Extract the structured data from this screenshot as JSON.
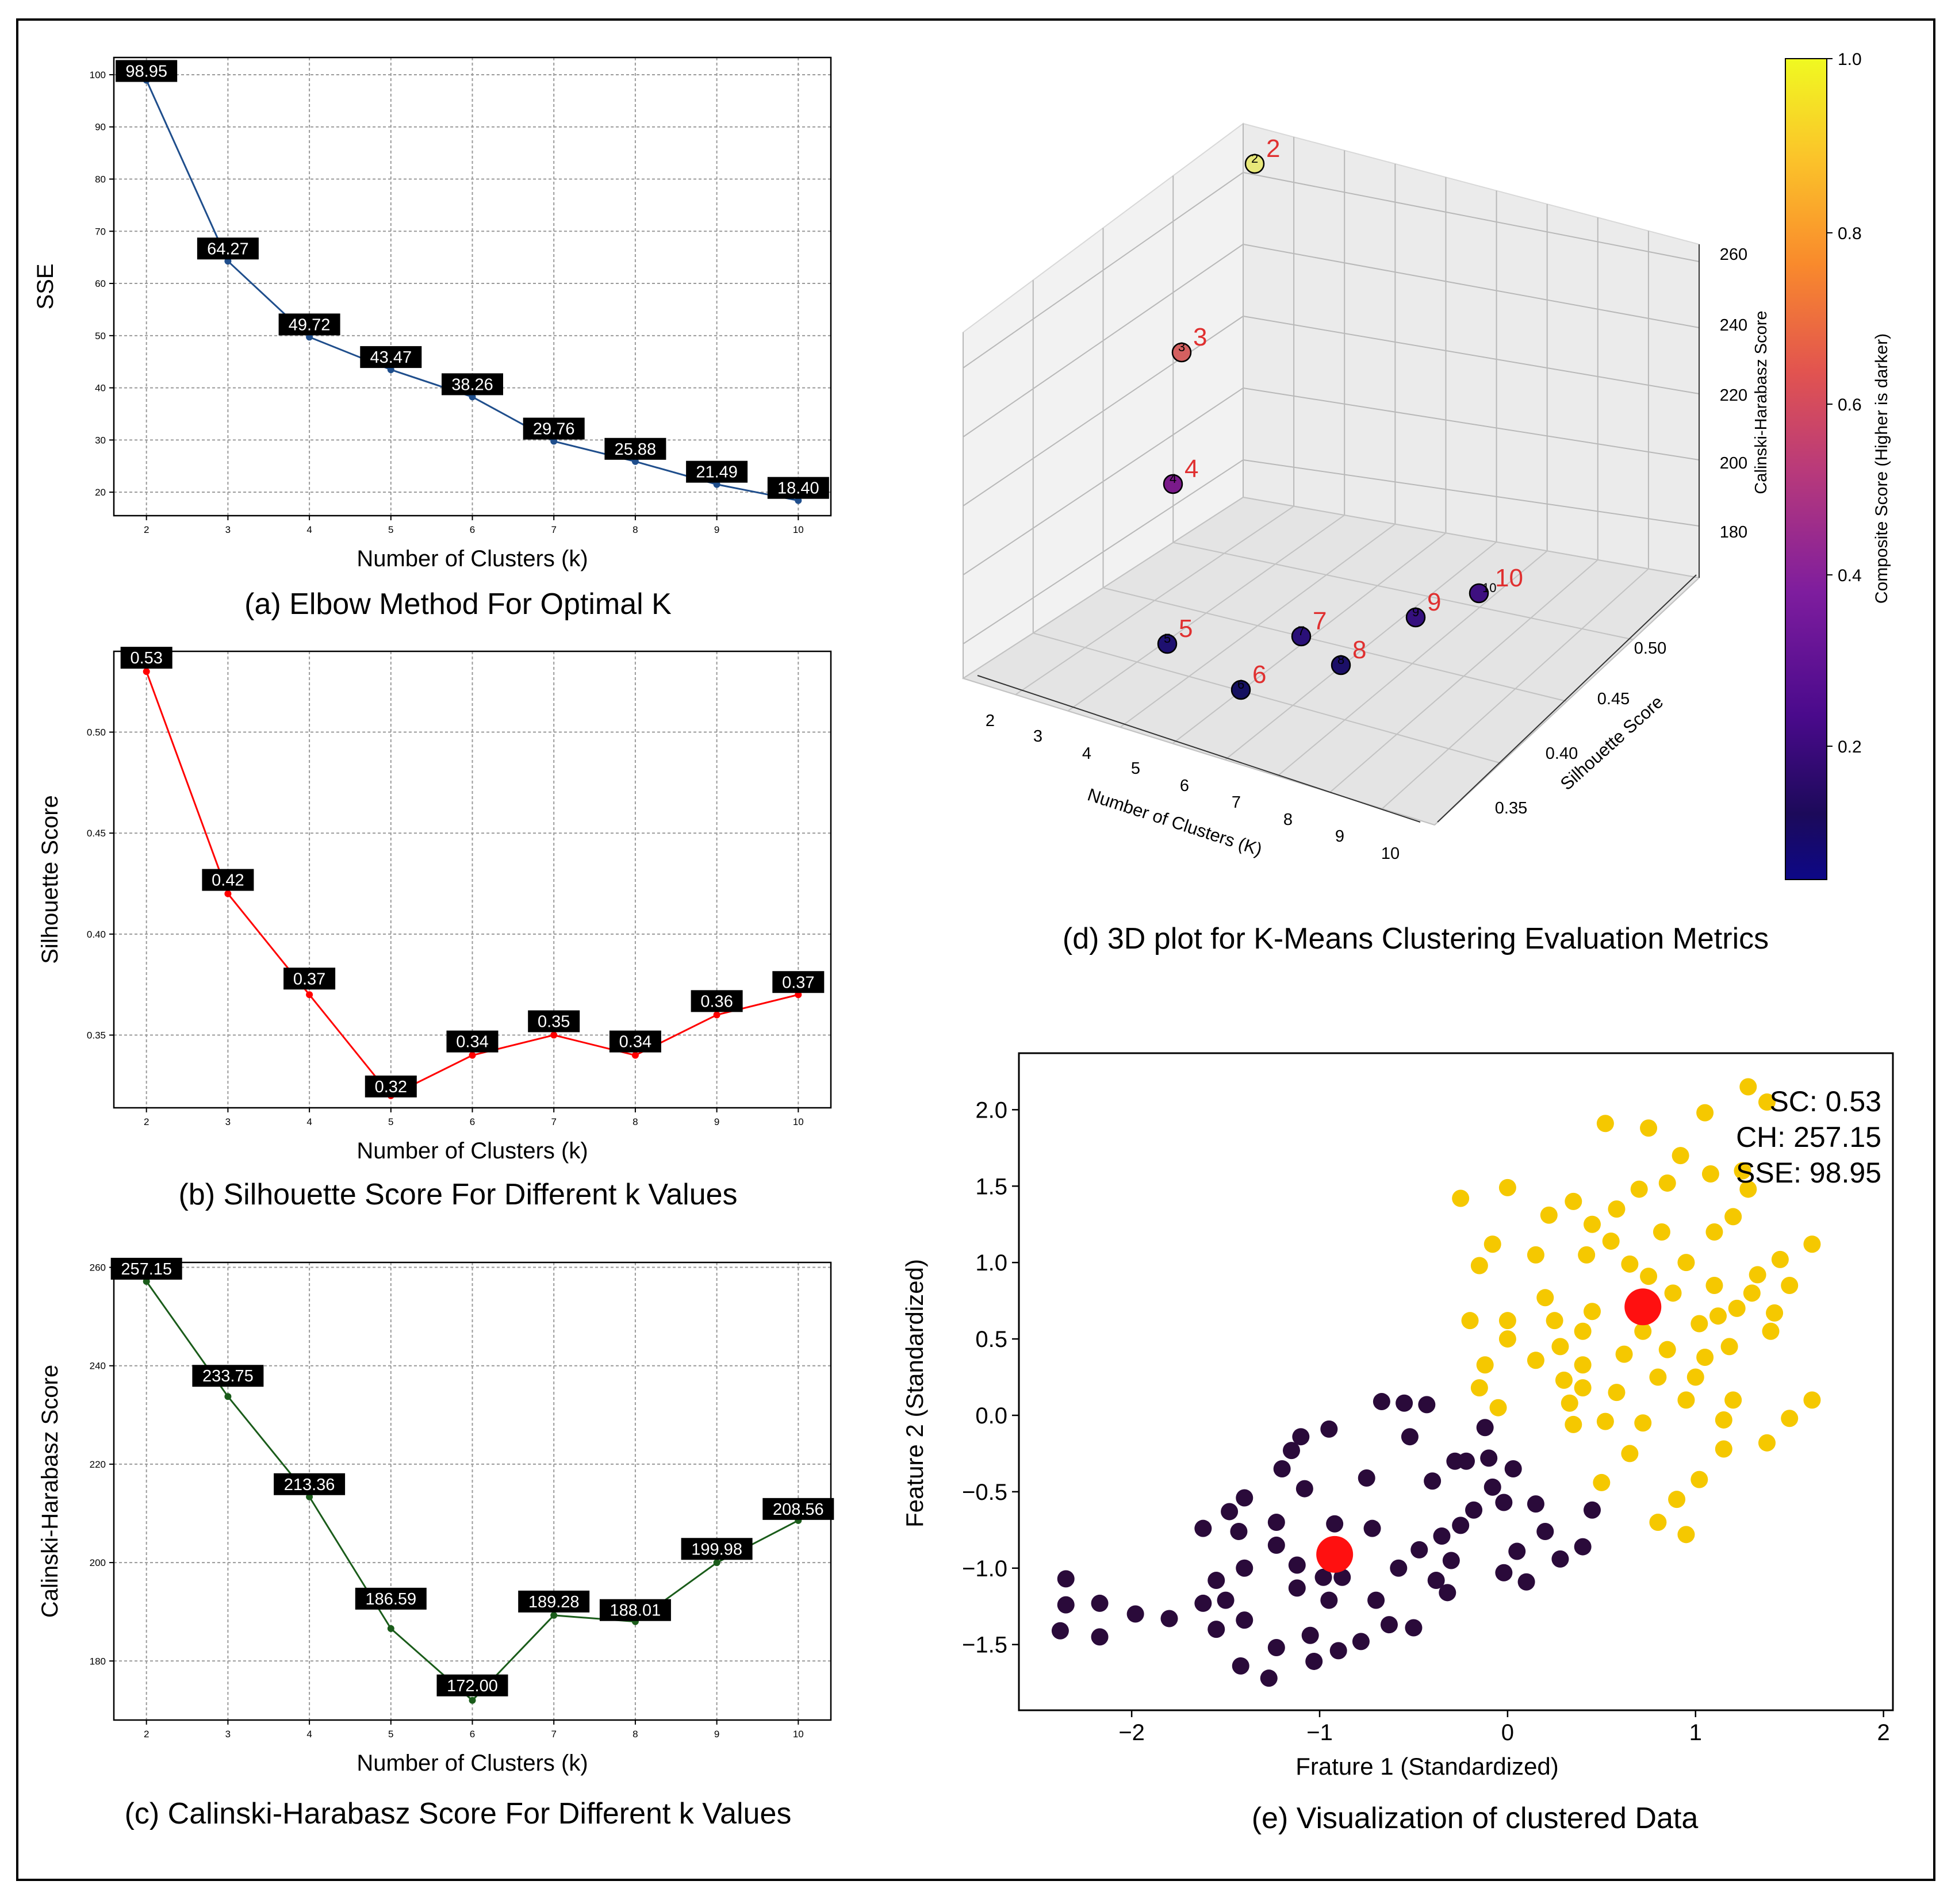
{
  "chart_data": [
    {
      "id": "elbow",
      "type": "line",
      "caption": "(a) Elbow Method For Optimal K",
      "xlabel": "Number of Clusters (k)",
      "ylabel": "SSE",
      "x": [
        2,
        3,
        4,
        5,
        6,
        7,
        8,
        9,
        10
      ],
      "values": [
        98.95,
        64.27,
        49.72,
        43.47,
        38.26,
        29.76,
        25.88,
        21.49,
        18.4
      ],
      "data_labels": [
        "98.95",
        "64.27",
        "49.72",
        "43.47",
        "38.26",
        "29.76",
        "25.88",
        "21.49",
        "18.40"
      ],
      "xlim": [
        1.6,
        10.4
      ],
      "ylim": [
        15.5,
        103.3
      ],
      "yticks": [
        20,
        30,
        40,
        50,
        60,
        70,
        80,
        90,
        100
      ],
      "xticks": [
        2,
        3,
        4,
        5,
        6,
        7,
        8,
        9,
        10
      ],
      "color": "#1f4e8c",
      "grid": true
    },
    {
      "id": "silhouette",
      "type": "line",
      "caption": "(b) Silhouette Score For Different k Values",
      "xlabel": "Number of Clusters (k)",
      "ylabel": "Silhouette Score",
      "x": [
        2,
        3,
        4,
        5,
        6,
        7,
        8,
        9,
        10
      ],
      "values": [
        0.53,
        0.42,
        0.37,
        0.32,
        0.34,
        0.35,
        0.34,
        0.36,
        0.37
      ],
      "data_labels": [
        "0.53",
        "0.42",
        "0.37",
        "0.32",
        "0.34",
        "0.35",
        "0.34",
        "0.36",
        "0.37"
      ],
      "xlim": [
        1.6,
        10.4
      ],
      "ylim": [
        0.314,
        0.54
      ],
      "yticks": [
        0.35,
        0.4,
        0.45,
        0.5
      ],
      "ytick_labels": [
        "0.35",
        "0.40",
        "0.45",
        "0.50"
      ],
      "xticks": [
        2,
        3,
        4,
        5,
        6,
        7,
        8,
        9,
        10
      ],
      "color": "#ff0000",
      "grid": true
    },
    {
      "id": "calinski",
      "type": "line",
      "caption": "(c) Calinski-Harabasz Score For Different k Values",
      "xlabel": "Number of Clusters (k)",
      "ylabel": "Calinski-Harabasz Score",
      "x": [
        2,
        3,
        4,
        5,
        6,
        7,
        8,
        9,
        10
      ],
      "values": [
        257.15,
        233.75,
        213.36,
        186.59,
        172.0,
        189.28,
        188.01,
        199.98,
        208.56
      ],
      "data_labels": [
        "257.15",
        "233.75",
        "213.36",
        "186.59",
        "172.00",
        "189.28",
        "188.01",
        "199.98",
        "208.56"
      ],
      "xlim": [
        1.6,
        10.4
      ],
      "ylim": [
        168,
        261
      ],
      "yticks": [
        180,
        200,
        220,
        240,
        260
      ],
      "xticks": [
        2,
        3,
        4,
        5,
        6,
        7,
        8,
        9,
        10
      ],
      "color": "#1a5c1a",
      "grid": true
    },
    {
      "id": "plot3d",
      "type": "scatter",
      "caption": "(d) 3D plot for K-Means Clustering Evaluation Metrics",
      "xlabel": "Number of Clusters (K)",
      "ylabel": "Silhouette Score",
      "zlabel": "Calinski-Harabasz Score",
      "k": [
        2,
        3,
        4,
        5,
        6,
        7,
        8,
        9,
        10
      ],
      "silhouette": [
        0.53,
        0.42,
        0.37,
        0.32,
        0.34,
        0.35,
        0.34,
        0.36,
        0.37
      ],
      "calinski": [
        257.15,
        233.75,
        213.36,
        186.59,
        172.0,
        189.28,
        188.01,
        199.98,
        208.56
      ],
      "composite": [
        1.0,
        0.62,
        0.33,
        0.1,
        0.05,
        0.15,
        0.1,
        0.25,
        0.3
      ],
      "point_labels": [
        "2",
        "3",
        "4",
        "5",
        "6",
        "7",
        "8",
        "9",
        "10"
      ],
      "x_tick_labels": [
        "2",
        "3",
        "4",
        "5",
        "6",
        "7",
        "8",
        "9",
        "10"
      ],
      "y_tick_labels": [
        "0.35",
        "0.40",
        "0.45",
        "0.50"
      ],
      "z_tick_labels": [
        "180",
        "200",
        "220",
        "240",
        "260"
      ],
      "colorbar": {
        "label": "Composite Score (Higher is darker)",
        "ticks": [
          "0.2",
          "0.4",
          "0.6",
          "0.8",
          "1.0"
        ],
        "colormap": "plasma"
      }
    },
    {
      "id": "clusters",
      "type": "scatter",
      "caption": "(e) Visualization of clustered Data",
      "xlabel": "Frature 1 (Standardized)",
      "ylabel": "Feature 2 (Standardized)",
      "xlim": [
        -2.6,
        2.05
      ],
      "ylim": [
        -1.93,
        2.37
      ],
      "xticks": [
        -2,
        -1,
        0,
        1,
        2
      ],
      "xtick_labels": [
        "−2",
        "−1",
        "0",
        "1",
        "2"
      ],
      "yticks": [
        -1.5,
        -1.0,
        -0.5,
        0.0,
        0.5,
        1.0,
        1.5,
        2.0
      ],
      "ytick_labels": [
        "−1.5",
        "−1.0",
        "−0.5",
        "0.0",
        "0.5",
        "1.0",
        "1.5",
        "2.0"
      ],
      "annotations": [
        "SC: 0.53",
        "CH: 257.15",
        "SSE: 98.95"
      ],
      "cluster_colors": [
        "#2a0a3a",
        "#f5c800"
      ],
      "centroid_color": "#ff1010",
      "centroids": [
        [
          0.72,
          0.71
        ],
        [
          -0.92,
          -0.91
        ]
      ],
      "cluster0": [
        [
          -2.35,
          -1.07
        ],
        [
          -2.35,
          -1.24
        ],
        [
          -2.38,
          -1.41
        ],
        [
          -2.17,
          -1.23
        ],
        [
          -2.17,
          -1.45
        ],
        [
          -1.98,
          -1.3
        ],
        [
          -1.8,
          -1.33
        ],
        [
          -1.62,
          -0.74
        ],
        [
          -1.62,
          -1.23
        ],
        [
          -1.55,
          -1.08
        ],
        [
          -1.55,
          -1.4
        ],
        [
          -1.5,
          -1.21
        ],
        [
          -1.48,
          -0.63
        ],
        [
          -1.43,
          -0.76
        ],
        [
          -1.4,
          -0.54
        ],
        [
          -1.4,
          -1.0
        ],
        [
          -1.4,
          -1.34
        ],
        [
          -1.42,
          -1.64
        ],
        [
          -1.27,
          -1.72
        ],
        [
          -1.23,
          -0.7
        ],
        [
          -1.23,
          -0.85
        ],
        [
          -1.23,
          -1.52
        ],
        [
          -1.2,
          -0.35
        ],
        [
          -1.15,
          -0.23
        ],
        [
          -1.12,
          -0.98
        ],
        [
          -1.12,
          -1.13
        ],
        [
          -1.1,
          -0.14
        ],
        [
          -1.08,
          -0.48
        ],
        [
          -1.05,
          -1.44
        ],
        [
          -1.03,
          -1.61
        ],
        [
          -0.98,
          -1.06
        ],
        [
          -0.95,
          -0.09
        ],
        [
          -0.95,
          -1.21
        ],
        [
          -0.92,
          -0.71
        ],
        [
          -0.9,
          -1.54
        ],
        [
          -0.88,
          -1.06
        ],
        [
          -0.78,
          -1.48
        ],
        [
          -0.75,
          -0.41
        ],
        [
          -0.72,
          -0.74
        ],
        [
          -0.7,
          -1.21
        ],
        [
          -0.67,
          0.09
        ],
        [
          -0.63,
          -1.37
        ],
        [
          -0.58,
          -1.0
        ],
        [
          -0.55,
          0.08
        ],
        [
          -0.52,
          -0.14
        ],
        [
          -0.5,
          -1.39
        ],
        [
          -0.47,
          -0.88
        ],
        [
          -0.43,
          0.07
        ],
        [
          -0.4,
          -0.43
        ],
        [
          -0.38,
          -1.08
        ],
        [
          -0.35,
          -0.79
        ],
        [
          -0.32,
          -1.16
        ],
        [
          -0.28,
          -0.3
        ],
        [
          -0.25,
          -0.72
        ],
        [
          -0.22,
          -0.3
        ],
        [
          -0.18,
          -0.62
        ],
        [
          -0.12,
          -0.08
        ],
        [
          -0.08,
          -0.47
        ],
        [
          -0.02,
          -0.57
        ],
        [
          -0.02,
          -1.03
        ],
        [
          0.03,
          -0.35
        ],
        [
          0.05,
          -0.89
        ],
        [
          0.1,
          -1.09
        ],
        [
          0.15,
          -0.58
        ],
        [
          0.2,
          -0.76
        ],
        [
          0.28,
          -0.94
        ],
        [
          0.4,
          -0.86
        ],
        [
          0.45,
          -0.62
        ],
        [
          -0.1,
          -0.28
        ],
        [
          -0.3,
          -0.95
        ]
      ],
      "cluster1": [
        [
          -0.25,
          1.42
        ],
        [
          -0.2,
          0.62
        ],
        [
          -0.15,
          0.98
        ],
        [
          -0.15,
          0.18
        ],
        [
          -0.12,
          0.33
        ],
        [
          -0.08,
          1.12
        ],
        [
          -0.05,
          0.05
        ],
        [
          0.0,
          0.62
        ],
        [
          0.0,
          0.5
        ],
        [
          0.0,
          1.49
        ],
        [
          0.15,
          0.36
        ],
        [
          0.15,
          1.05
        ],
        [
          0.2,
          0.77
        ],
        [
          0.22,
          1.31
        ],
        [
          0.25,
          0.62
        ],
        [
          0.28,
          0.45
        ],
        [
          0.3,
          0.23
        ],
        [
          0.33,
          0.08
        ],
        [
          0.35,
          -0.06
        ],
        [
          0.35,
          1.4
        ],
        [
          0.4,
          0.55
        ],
        [
          0.4,
          0.33
        ],
        [
          0.4,
          0.18
        ],
        [
          0.42,
          1.05
        ],
        [
          0.45,
          0.68
        ],
        [
          0.45,
          1.25
        ],
        [
          0.5,
          -0.44
        ],
        [
          0.52,
          1.91
        ],
        [
          0.52,
          -0.04
        ],
        [
          0.55,
          1.14
        ],
        [
          0.58,
          1.35
        ],
        [
          0.58,
          0.15
        ],
        [
          0.62,
          0.4
        ],
        [
          0.65,
          -0.25
        ],
        [
          0.65,
          0.99
        ],
        [
          0.7,
          1.48
        ],
        [
          0.72,
          -0.05
        ],
        [
          0.72,
          0.55
        ],
        [
          0.75,
          0.91
        ],
        [
          0.75,
          1.88
        ],
        [
          0.8,
          0.25
        ],
        [
          0.8,
          -0.7
        ],
        [
          0.82,
          1.2
        ],
        [
          0.85,
          0.43
        ],
        [
          0.85,
          1.52
        ],
        [
          0.88,
          0.8
        ],
        [
          0.9,
          -0.55
        ],
        [
          0.92,
          1.7
        ],
        [
          0.95,
          1.0
        ],
        [
          0.95,
          0.1
        ],
        [
          1.0,
          0.25
        ],
        [
          1.02,
          -0.42
        ],
        [
          1.02,
          0.6
        ],
        [
          1.05,
          1.98
        ],
        [
          1.05,
          0.38
        ],
        [
          1.08,
          1.58
        ],
        [
          1.1,
          0.85
        ],
        [
          1.1,
          1.2
        ],
        [
          1.12,
          0.65
        ],
        [
          1.15,
          -0.03
        ],
        [
          1.18,
          0.45
        ],
        [
          1.2,
          0.1
        ],
        [
          1.22,
          0.7
        ],
        [
          1.25,
          1.6
        ],
        [
          1.28,
          1.48
        ],
        [
          1.3,
          0.8
        ],
        [
          1.33,
          0.92
        ],
        [
          1.38,
          -0.18
        ],
        [
          1.4,
          0.55
        ],
        [
          1.42,
          0.67
        ],
        [
          1.45,
          1.02
        ],
        [
          1.5,
          0.85
        ],
        [
          1.62,
          1.12
        ],
        [
          1.62,
          0.1
        ],
        [
          1.28,
          2.15
        ],
        [
          1.38,
          2.05
        ],
        [
          1.5,
          -0.02
        ],
        [
          1.15,
          -0.22
        ],
        [
          0.95,
          -0.78
        ],
        [
          1.2,
          1.3
        ]
      ]
    }
  ]
}
